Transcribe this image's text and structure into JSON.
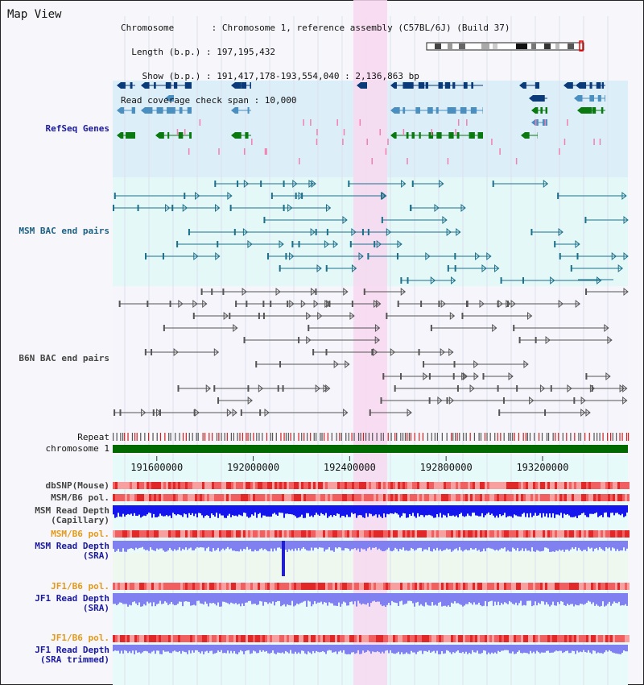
{
  "header": {
    "title": "Map View",
    "info_lines": [
      "Chromosome       : Chromosome 1, reference assembly (C57BL/6J) (Build 37)",
      "  Length (b.p.) : 197,195,432",
      "    Show (b.p.) : 191,417,178-193,554,040 : 2,136,863 bp",
      "Read coverage check span : 10,000"
    ]
  },
  "tracks": {
    "refseq": "RefSeq Genes",
    "msm_bac": "MSM BAC end pairs",
    "b6n_bac": "B6N BAC end pairs",
    "repeat": "Repeat",
    "chromosome": "chromosome 1",
    "dbsnp": "dbSNP(Mouse)",
    "msm_b6_pol_1": "MSM/B6 pol.",
    "msm_depth_cap": "MSM Read Depth\n(Capillary)",
    "msm_b6_pol_2": "MSM/B6 pol.",
    "msm_depth_sra": "MSM Read Depth\n(SRA)",
    "jf1_b6_pol_1": "JF1/B6 pol.",
    "jf1_depth_sra": "JF1 Read Depth\n(SRA)",
    "jf1_b6_pol_2": "JF1/B6 pol.",
    "jf1_depth_trim": "JF1 Read Depth\n(SRA trimmed)"
  },
  "axis": {
    "ticks": [
      "191600000",
      "192000000",
      "192400000",
      "192800000",
      "193200000"
    ],
    "tick_values": [
      191600000,
      192000000,
      192400000,
      192800000,
      193200000
    ],
    "view_start": 191417178,
    "view_end": 193554040
  },
  "colors": {
    "refseq_bg": "#dceef8",
    "msm_bg": "#e4f8f8",
    "highlight": "#f8d8f0",
    "gene_dark": "#0b3a78",
    "gene_mid": "#4a8fc0",
    "gene_green": "#0a7a10",
    "bac_teal": "#1d6f8a",
    "bac_gray": "#555555",
    "chromosome_bar": "#006a00",
    "depth_blue": "#1515ee",
    "depth_lilac": "#8080f0"
  }
}
